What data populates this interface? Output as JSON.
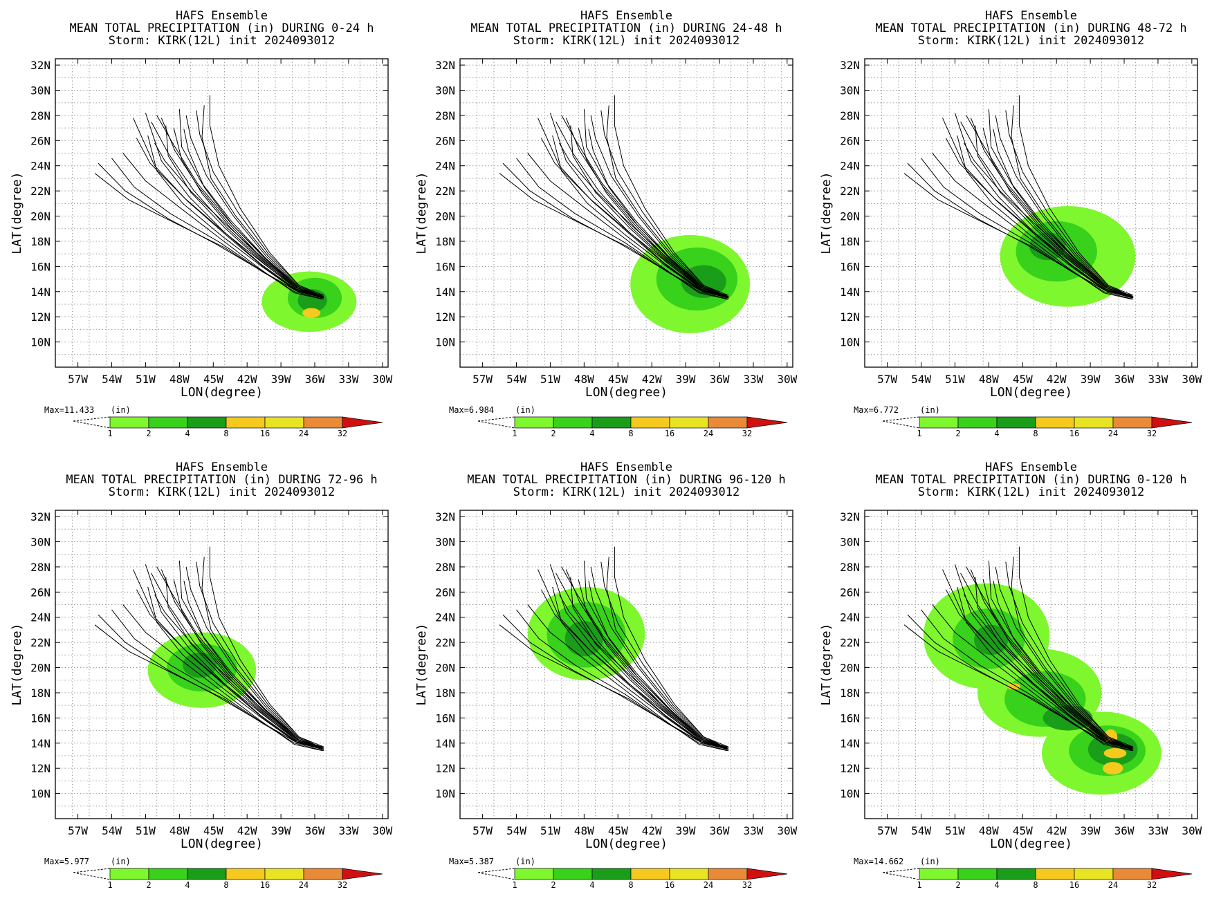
{
  "colors": {
    "c1_2": "#7ef72e",
    "c2_4": "#38d11c",
    "c4_8": "#1a9e1a",
    "c8_16": "#f5c91e",
    "c16_24": "#e8e424",
    "c24_32": "#e88a38",
    "c32_plus": "#d01010",
    "track": "#000000",
    "grid": "#9a9a9a"
  },
  "chart_data": [
    {
      "type": "heatmap",
      "title": "HAFS Ensemble",
      "subtitle": "MEAN TOTAL PRECIPITATION (in) DURING  0-24 h",
      "storm_line": "Storm: KIRK(12L) init 2024093012",
      "xlabel": "LON(degree)",
      "ylabel": "LAT(degree)",
      "x_ticks": [
        "57W",
        "54W",
        "51W",
        "48W",
        "45W",
        "42W",
        "39W",
        "36W",
        "33W",
        "30W"
      ],
      "y_ticks": [
        "32N",
        "30N",
        "28N",
        "26N",
        "24N",
        "22N",
        "20N",
        "18N",
        "16N",
        "14N",
        "12N",
        "10N"
      ],
      "xlim": [
        -59,
        -29.5
      ],
      "ylim": [
        8,
        32.5
      ],
      "grid": true,
      "max_label": "Max=11.433",
      "units_label": "(in)",
      "colorbar_levels": [
        "1",
        "2",
        "4",
        "8",
        "16",
        "24",
        "32"
      ],
      "max_value": 11.433,
      "rain_blobs": [
        {
          "lon": -36.5,
          "lat": 13.2,
          "rlon": 4.2,
          "rlat": 2.4,
          "level": 1
        },
        {
          "lon": -36.0,
          "lat": 13.5,
          "rlon": 2.4,
          "rlat": 1.6,
          "level": 2
        },
        {
          "lon": -36.2,
          "lat": 13.3,
          "rlon": 1.3,
          "rlat": 0.9,
          "level": 3
        },
        {
          "lon": -36.3,
          "lat": 12.3,
          "rlon": 0.8,
          "rlat": 0.4,
          "level": 4
        }
      ]
    },
    {
      "type": "heatmap",
      "title": "HAFS Ensemble",
      "subtitle": "MEAN TOTAL PRECIPITATION (in) DURING 24-48 h",
      "storm_line": "Storm: KIRK(12L) init 2024093012",
      "xlabel": "LON(degree)",
      "ylabel": "LAT(degree)",
      "x_ticks": [
        "57W",
        "54W",
        "51W",
        "48W",
        "45W",
        "42W",
        "39W",
        "36W",
        "33W",
        "30W"
      ],
      "y_ticks": [
        "32N",
        "30N",
        "28N",
        "26N",
        "24N",
        "22N",
        "20N",
        "18N",
        "16N",
        "14N",
        "12N",
        "10N"
      ],
      "xlim": [
        -59,
        -29.5
      ],
      "ylim": [
        8,
        32.5
      ],
      "grid": true,
      "max_label": "Max=6.984",
      "units_label": "(in)",
      "colorbar_levels": [
        "1",
        "2",
        "4",
        "8",
        "16",
        "24",
        "32"
      ],
      "max_value": 6.984,
      "rain_blobs": [
        {
          "lon": -38.6,
          "lat": 14.6,
          "rlon": 5.3,
          "rlat": 3.9,
          "level": 1
        },
        {
          "lon": -38.0,
          "lat": 15.0,
          "rlon": 3.6,
          "rlat": 2.5,
          "level": 2
        },
        {
          "lon": -37.4,
          "lat": 14.8,
          "rlon": 2.0,
          "rlat": 1.3,
          "level": 3
        }
      ]
    },
    {
      "type": "heatmap",
      "title": "HAFS Ensemble",
      "subtitle": "MEAN TOTAL PRECIPITATION (in) DURING 48-72 h",
      "storm_line": "Storm: KIRK(12L) init 2024093012",
      "xlabel": "LON(degree)",
      "ylabel": "LAT(degree)",
      "x_ticks": [
        "57W",
        "54W",
        "51W",
        "48W",
        "45W",
        "42W",
        "39W",
        "36W",
        "33W",
        "30W"
      ],
      "y_ticks": [
        "32N",
        "30N",
        "28N",
        "26N",
        "24N",
        "22N",
        "20N",
        "18N",
        "16N",
        "14N",
        "12N",
        "10N"
      ],
      "xlim": [
        -59,
        -29.5
      ],
      "ylim": [
        8,
        32.5
      ],
      "grid": true,
      "max_label": "Max=6.772",
      "units_label": "(in)",
      "colorbar_levels": [
        "1",
        "2",
        "4",
        "8",
        "16",
        "24",
        "32"
      ],
      "max_value": 6.772,
      "rain_blobs": [
        {
          "lon": -41.0,
          "lat": 16.8,
          "rlon": 6.0,
          "rlat": 4.0,
          "level": 1
        },
        {
          "lon": -42.0,
          "lat": 17.2,
          "rlon": 3.6,
          "rlat": 2.4,
          "level": 2
        },
        {
          "lon": -42.8,
          "lat": 17.6,
          "rlon": 1.6,
          "rlat": 1.1,
          "level": 3
        }
      ]
    },
    {
      "type": "heatmap",
      "title": "HAFS Ensemble",
      "subtitle": "MEAN TOTAL PRECIPITATION (in) DURING 72-96 h",
      "storm_line": "Storm: KIRK(12L) init 2024093012",
      "xlabel": "LON(degree)",
      "ylabel": "LAT(degree)",
      "x_ticks": [
        "57W",
        "54W",
        "51W",
        "48W",
        "45W",
        "42W",
        "39W",
        "36W",
        "33W",
        "30W"
      ],
      "y_ticks": [
        "32N",
        "30N",
        "28N",
        "26N",
        "24N",
        "22N",
        "20N",
        "18N",
        "16N",
        "14N",
        "12N",
        "10N"
      ],
      "xlim": [
        -59,
        -29.5
      ],
      "ylim": [
        8,
        32.5
      ],
      "grid": true,
      "max_label": "Max=5.977",
      "units_label": "(in)",
      "colorbar_levels": [
        "1",
        "2",
        "4",
        "8",
        "16",
        "24",
        "32"
      ],
      "max_value": 5.977,
      "rain_blobs": [
        {
          "lon": -46.0,
          "lat": 19.8,
          "rlon": 4.8,
          "rlat": 3.0,
          "level": 1
        },
        {
          "lon": -46.0,
          "lat": 20.0,
          "rlon": 3.1,
          "rlat": 1.9,
          "level": 2
        },
        {
          "lon": -46.2,
          "lat": 20.2,
          "rlon": 1.5,
          "rlat": 1.0,
          "level": 3
        }
      ]
    },
    {
      "type": "heatmap",
      "title": "HAFS Ensemble",
      "subtitle": "MEAN TOTAL PRECIPITATION (in) DURING 96-120 h",
      "storm_line": "Storm: KIRK(12L) init 2024093012",
      "xlabel": "LON(degree)",
      "ylabel": "LAT(degree)",
      "x_ticks": [
        "57W",
        "54W",
        "51W",
        "48W",
        "45W",
        "42W",
        "39W",
        "36W",
        "33W",
        "30W"
      ],
      "y_ticks": [
        "32N",
        "30N",
        "28N",
        "26N",
        "24N",
        "22N",
        "20N",
        "18N",
        "16N",
        "14N",
        "12N",
        "10N"
      ],
      "xlim": [
        -59,
        -29.5
      ],
      "ylim": [
        8,
        32.5
      ],
      "grid": true,
      "max_label": "Max=5.387",
      "units_label": "(in)",
      "colorbar_levels": [
        "1",
        "2",
        "4",
        "8",
        "16",
        "24",
        "32"
      ],
      "max_value": 5.387,
      "rain_blobs": [
        {
          "lon": -47.8,
          "lat": 22.7,
          "rlon": 5.2,
          "rlat": 3.7,
          "level": 1
        },
        {
          "lon": -47.8,
          "lat": 22.6,
          "rlon": 3.5,
          "rlat": 2.6,
          "level": 2
        },
        {
          "lon": -48.0,
          "lat": 22.3,
          "rlon": 1.7,
          "rlat": 1.4,
          "level": 3
        }
      ]
    },
    {
      "type": "heatmap",
      "title": "HAFS Ensemble",
      "subtitle": "MEAN TOTAL PRECIPITATION (in) DURING 0-120 h",
      "storm_line": "Storm: KIRK(12L) init 2024093012",
      "xlabel": "LON(degree)",
      "ylabel": "LAT(degree)",
      "x_ticks": [
        "57W",
        "54W",
        "51W",
        "48W",
        "45W",
        "42W",
        "39W",
        "36W",
        "33W",
        "30W"
      ],
      "y_ticks": [
        "32N",
        "30N",
        "28N",
        "26N",
        "24N",
        "22N",
        "20N",
        "18N",
        "16N",
        "14N",
        "12N",
        "10N"
      ],
      "xlim": [
        -59,
        -29.5
      ],
      "ylim": [
        8,
        32.5
      ],
      "grid": true,
      "max_label": "Max=14.662",
      "units_label": "(in)",
      "colorbar_levels": [
        "1",
        "2",
        "4",
        "8",
        "16",
        "24",
        "32"
      ],
      "max_value": 14.662,
      "rain_blobs": [
        {
          "lon": -48.2,
          "lat": 22.5,
          "rlon": 5.6,
          "rlat": 4.2,
          "level": 1
        },
        {
          "lon": -43.5,
          "lat": 18.0,
          "rlon": 5.5,
          "rlat": 3.5,
          "level": 1
        },
        {
          "lon": -38.0,
          "lat": 13.2,
          "rlon": 5.3,
          "rlat": 3.3,
          "level": 1
        },
        {
          "lon": -48.0,
          "lat": 22.3,
          "rlon": 3.2,
          "rlat": 2.4,
          "level": 2
        },
        {
          "lon": -43.0,
          "lat": 17.5,
          "rlon": 3.6,
          "rlat": 2.2,
          "level": 2
        },
        {
          "lon": -37.5,
          "lat": 13.4,
          "rlon": 3.4,
          "rlat": 2.0,
          "level": 2
        },
        {
          "lon": -47.8,
          "lat": 22.2,
          "rlon": 1.5,
          "rlat": 1.2,
          "level": 3
        },
        {
          "lon": -41.0,
          "lat": 16.0,
          "rlon": 2.2,
          "rlat": 1.0,
          "level": 3
        },
        {
          "lon": -37.0,
          "lat": 13.5,
          "rlon": 2.2,
          "rlat": 1.3,
          "level": 3
        },
        {
          "lon": -37.2,
          "lat": 14.5,
          "rlon": 0.6,
          "rlat": 0.6,
          "level": 4
        },
        {
          "lon": -36.8,
          "lat": 13.2,
          "rlon": 1.0,
          "rlat": 0.4,
          "level": 4
        },
        {
          "lon": -37.0,
          "lat": 12.0,
          "rlon": 0.9,
          "rlat": 0.5,
          "level": 4
        },
        {
          "lon": -45.8,
          "lat": 18.5,
          "rlon": 0.6,
          "rlat": 0.25,
          "level": 4
        }
      ]
    }
  ],
  "ensemble_tracks": [
    [
      [
        -35.2,
        13.5
      ],
      [
        -37.5,
        14.0
      ],
      [
        -40.5,
        15.5
      ],
      [
        -44.0,
        17.5
      ],
      [
        -48.5,
        19.5
      ],
      [
        -52.5,
        21.3
      ],
      [
        -55.5,
        23.4
      ]
    ],
    [
      [
        -35.2,
        13.6
      ],
      [
        -37.7,
        14.1
      ],
      [
        -40.8,
        15.7
      ],
      [
        -44.4,
        17.9
      ],
      [
        -48.8,
        20.2
      ],
      [
        -52.0,
        22.3
      ],
      [
        -54.0,
        24.6
      ]
    ],
    [
      [
        -35.3,
        13.4
      ],
      [
        -37.8,
        13.9
      ],
      [
        -41.0,
        15.9
      ],
      [
        -44.5,
        18.3
      ],
      [
        -48.0,
        20.7
      ],
      [
        -51.0,
        22.8
      ],
      [
        -53.0,
        25.0
      ]
    ],
    [
      [
        -35.2,
        13.6
      ],
      [
        -37.6,
        14.1
      ],
      [
        -40.6,
        16.0
      ],
      [
        -44.0,
        18.6
      ],
      [
        -47.3,
        21.2
      ],
      [
        -50.2,
        24.0
      ],
      [
        -52.1,
        27.8
      ]
    ],
    [
      [
        -35.2,
        13.5
      ],
      [
        -37.7,
        14.2
      ],
      [
        -40.8,
        16.2
      ],
      [
        -44.1,
        18.8
      ],
      [
        -47.1,
        21.5
      ],
      [
        -49.6,
        24.4
      ],
      [
        -51.0,
        28.2
      ]
    ],
    [
      [
        -35.3,
        13.7
      ],
      [
        -37.6,
        14.3
      ],
      [
        -40.6,
        16.4
      ],
      [
        -43.8,
        19.1
      ],
      [
        -46.7,
        22.0
      ],
      [
        -49.0,
        25.0
      ],
      [
        -50.5,
        27.5
      ]
    ],
    [
      [
        -35.2,
        13.5
      ],
      [
        -37.6,
        14.3
      ],
      [
        -40.5,
        16.5
      ],
      [
        -43.6,
        19.4
      ],
      [
        -46.3,
        22.3
      ],
      [
        -48.4,
        25.2
      ],
      [
        -49.6,
        27.8
      ]
    ],
    [
      [
        -35.2,
        13.6
      ],
      [
        -37.5,
        14.4
      ],
      [
        -40.4,
        16.7
      ],
      [
        -43.4,
        19.6
      ],
      [
        -46.0,
        22.6
      ],
      [
        -47.8,
        25.5
      ],
      [
        -48.0,
        28.5
      ]
    ],
    [
      [
        -35.3,
        13.5
      ],
      [
        -37.6,
        14.2
      ],
      [
        -40.5,
        16.4
      ],
      [
        -43.5,
        19.1
      ],
      [
        -46.0,
        21.8
      ],
      [
        -47.8,
        24.5
      ],
      [
        -48.5,
        27.0
      ]
    ],
    [
      [
        -35.2,
        13.6
      ],
      [
        -37.5,
        14.4
      ],
      [
        -40.3,
        16.8
      ],
      [
        -43.2,
        20.0
      ],
      [
        -45.6,
        23.2
      ],
      [
        -47.0,
        26.2
      ],
      [
        -47.4,
        28.0
      ]
    ],
    [
      [
        -35.2,
        13.7
      ],
      [
        -37.4,
        14.5
      ],
      [
        -40.1,
        17.0
      ],
      [
        -42.8,
        20.3
      ],
      [
        -45.0,
        23.5
      ],
      [
        -46.2,
        26.5
      ],
      [
        -46.5,
        28.4
      ]
    ],
    [
      [
        -35.3,
        13.6
      ],
      [
        -37.4,
        14.5
      ],
      [
        -40.0,
        17.1
      ],
      [
        -42.6,
        20.6
      ],
      [
        -44.5,
        24.0
      ],
      [
        -45.3,
        27.2
      ],
      [
        -45.3,
        29.6
      ]
    ],
    [
      [
        -35.2,
        13.4
      ],
      [
        -37.8,
        14.0
      ],
      [
        -41.0,
        15.8
      ],
      [
        -44.8,
        17.8
      ],
      [
        -49.0,
        19.8
      ],
      [
        -52.8,
        22.0
      ],
      [
        -55.2,
        24.2
      ]
    ],
    [
      [
        -35.3,
        13.5
      ],
      [
        -37.7,
        14.1
      ],
      [
        -40.7,
        16.0
      ],
      [
        -44.2,
        18.4
      ],
      [
        -47.7,
        21.0
      ],
      [
        -50.0,
        23.6
      ],
      [
        -50.8,
        26.4
      ]
    ],
    [
      [
        -35.2,
        13.6
      ],
      [
        -37.6,
        14.2
      ],
      [
        -40.6,
        16.3
      ],
      [
        -43.9,
        19.0
      ],
      [
        -47.0,
        21.9
      ],
      [
        -49.0,
        24.8
      ],
      [
        -49.2,
        27.2
      ]
    ],
    [
      [
        -35.3,
        13.6
      ],
      [
        -37.5,
        14.3
      ],
      [
        -40.4,
        16.6
      ],
      [
        -43.5,
        19.5
      ],
      [
        -46.4,
        22.6
      ],
      [
        -48.6,
        25.8
      ],
      [
        -50.0,
        28.0
      ]
    ],
    [
      [
        -35.2,
        13.5
      ],
      [
        -37.5,
        14.3
      ],
      [
        -40.3,
        16.6
      ],
      [
        -43.3,
        19.3
      ],
      [
        -45.8,
        22.3
      ],
      [
        -47.2,
        25.2
      ],
      [
        -47.6,
        26.9
      ]
    ],
    [
      [
        -35.3,
        13.5
      ],
      [
        -37.6,
        14.2
      ],
      [
        -40.5,
        16.2
      ],
      [
        -44.0,
        18.7
      ],
      [
        -47.5,
        21.4
      ],
      [
        -50.6,
        24.2
      ],
      [
        -51.8,
        26.2
      ]
    ],
    [
      [
        -35.2,
        13.6
      ],
      [
        -37.5,
        14.3
      ],
      [
        -40.4,
        16.5
      ],
      [
        -43.7,
        19.2
      ],
      [
        -46.9,
        21.9
      ],
      [
        -49.3,
        24.4
      ],
      [
        -50.2,
        25.8
      ]
    ],
    [
      [
        -35.3,
        13.6
      ],
      [
        -37.4,
        14.4
      ],
      [
        -40.2,
        16.9
      ],
      [
        -43.0,
        20.0
      ],
      [
        -45.2,
        23.0
      ],
      [
        -46.0,
        26.3
      ],
      [
        -45.8,
        28.8
      ]
    ]
  ]
}
